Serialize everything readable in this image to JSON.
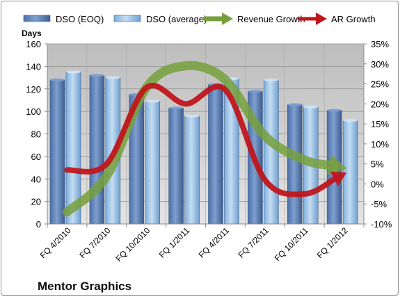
{
  "chart_data": {
    "type": "bar",
    "title": "Mentor Graphics",
    "categories": [
      "FQ 4/2010",
      "FQ 7/2010",
      "FQ 10/2010",
      "FQ 1/2011",
      "FQ 4/2011",
      "FQ 7/2011",
      "FQ 10/2011",
      "FQ 1/2012"
    ],
    "y_left": {
      "label": "Days",
      "ylim": [
        0,
        160
      ],
      "ticks": [
        "0",
        "20",
        "40",
        "60",
        "80",
        "100",
        "120",
        "140",
        "160"
      ]
    },
    "y_right": {
      "ylim": [
        -10,
        35
      ],
      "ticks": [
        "-10%",
        "-5%",
        "0%",
        "5%",
        "10%",
        "15%",
        "20%",
        "25%",
        "30%",
        "35%"
      ]
    },
    "series": [
      {
        "name": "DSO (EOQ)",
        "kind": "bar",
        "axis": "left",
        "color": "#5b7db1",
        "values": [
          128,
          132,
          115,
          103,
          124,
          118,
          106,
          101
        ]
      },
      {
        "name": "DSO (average)",
        "kind": "bar",
        "axis": "left",
        "color": "#9cc3e6",
        "values": [
          135,
          130,
          109,
          96,
          129,
          128,
          104,
          92
        ]
      },
      {
        "name": "Revenue Growth",
        "kind": "line",
        "axis": "right",
        "color": "#77a03c",
        "values": [
          -7,
          2,
          24,
          29.5,
          26,
          12,
          6,
          4
        ]
      },
      {
        "name": "AR Growth",
        "kind": "line",
        "axis": "right",
        "color": "#c0161c",
        "values": [
          3.5,
          5,
          24,
          20,
          23.5,
          1,
          -2.5,
          2.5
        ]
      }
    ],
    "grid": true,
    "legend_position": "top"
  }
}
